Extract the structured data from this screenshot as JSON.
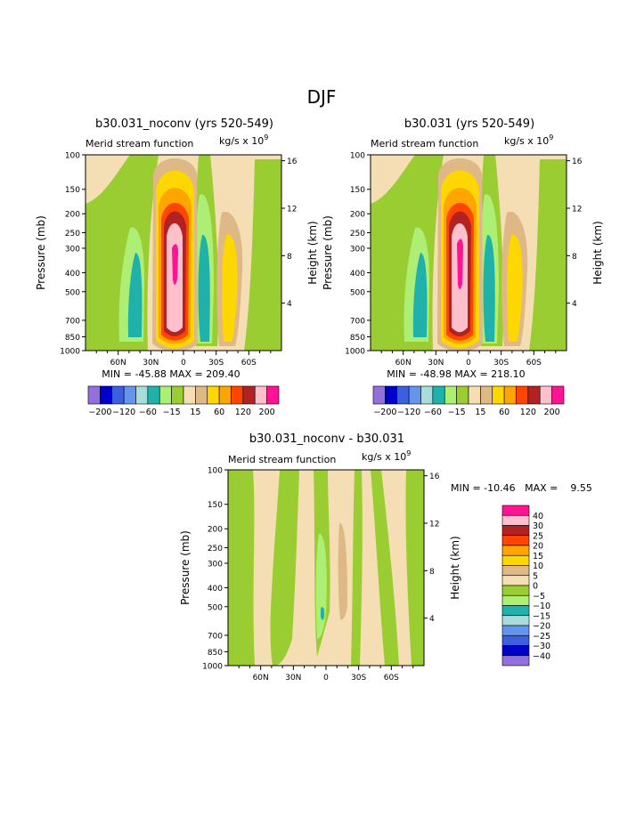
{
  "figure": {
    "season_title": "DJF"
  },
  "chart_data": [
    {
      "type": "heatmap",
      "id": "panel_a",
      "title": "b30.031_noconv (yrs 520-549)",
      "subtitle": "Merid stream function",
      "units": "kg/s x 10",
      "units_exponent": "9",
      "ylabel": "Pressure (mb)",
      "y2label": "Height (km)",
      "y_ticks": [
        "100",
        "150",
        "200",
        "250",
        "300",
        "400",
        "500",
        "700",
        "850",
        "1000"
      ],
      "y_tick_values": [
        100,
        150,
        200,
        250,
        300,
        400,
        500,
        700,
        850,
        1000
      ],
      "y2_ticks": [
        "16",
        "12",
        "8",
        "4"
      ],
      "y2_tick_values": [
        16,
        12,
        8,
        4
      ],
      "x_ticks": [
        "60N",
        "30N",
        "0",
        "30S",
        "60S"
      ],
      "x_tick_values": [
        60,
        30,
        0,
        -30,
        -60
      ],
      "xlim": [
        90,
        -90
      ],
      "stats": "MIN = -45.88   MAX = 209.40",
      "min": -45.88,
      "max": 209.4,
      "contour_levels": [
        -200,
        -160,
        -120,
        -80,
        -60,
        -30,
        -15,
        0,
        15,
        30,
        60,
        80,
        120,
        160,
        200
      ],
      "legend_labels": [
        "-200",
        "-120",
        "-60",
        "-15",
        "15",
        "60",
        "120",
        "200"
      ]
    },
    {
      "type": "heatmap",
      "id": "panel_b",
      "title": "b30.031 (yrs 520-549)",
      "subtitle": "Merid stream function",
      "units": "kg/s x 10",
      "units_exponent": "9",
      "ylabel": "Pressure (mb)",
      "y2label": "Height (km)",
      "y_ticks": [
        "100",
        "150",
        "200",
        "250",
        "300",
        "400",
        "500",
        "700",
        "850",
        "1000"
      ],
      "y_tick_values": [
        100,
        150,
        200,
        250,
        300,
        400,
        500,
        700,
        850,
        1000
      ],
      "y2_ticks": [
        "16",
        "12",
        "8",
        "4"
      ],
      "y2_tick_values": [
        16,
        12,
        8,
        4
      ],
      "x_ticks": [
        "60N",
        "30N",
        "0",
        "30S",
        "60S"
      ],
      "x_tick_values": [
        60,
        30,
        0,
        -30,
        -60
      ],
      "xlim": [
        90,
        -90
      ],
      "stats": "MIN = -48.98   MAX = 218.10",
      "min": -48.98,
      "max": 218.1,
      "contour_levels": [
        -200,
        -160,
        -120,
        -80,
        -60,
        -30,
        -15,
        0,
        15,
        30,
        60,
        80,
        120,
        160,
        200
      ],
      "legend_labels": [
        "-200",
        "-120",
        "-60",
        "-15",
        "15",
        "60",
        "120",
        "200"
      ]
    },
    {
      "type": "heatmap",
      "id": "panel_c",
      "title": "b30.031_noconv - b30.031",
      "subtitle": "Merid stream function",
      "units": "kg/s x 10",
      "units_exponent": "9",
      "ylabel": "Pressure (mb)",
      "y2label": "Height (km)",
      "y_ticks": [
        "100",
        "150",
        "200",
        "250",
        "300",
        "400",
        "500",
        "700",
        "850",
        "1000"
      ],
      "y_tick_values": [
        100,
        150,
        200,
        250,
        300,
        400,
        500,
        700,
        850,
        1000
      ],
      "y2_ticks": [
        "16",
        "12",
        "8",
        "4"
      ],
      "y2_tick_values": [
        16,
        12,
        8,
        4
      ],
      "x_ticks": [
        "60N",
        "30N",
        "0",
        "30S",
        "60S"
      ],
      "x_tick_values": [
        60,
        30,
        0,
        -30,
        -60
      ],
      "xlim": [
        90,
        -90
      ],
      "stats": "MIN = -10.46   MAX =    9.55",
      "min": -10.46,
      "max": 9.55,
      "contour_levels": [
        -40,
        -30,
        -25,
        -20,
        -15,
        -10,
        -5,
        0,
        5,
        10,
        15,
        20,
        25,
        30,
        40
      ],
      "legend_labels": [
        "40",
        "30",
        "25",
        "20",
        "15",
        "10",
        "5",
        "0",
        "-5",
        "-10",
        "-15",
        "-20",
        "-25",
        "-30",
        "-40"
      ]
    }
  ],
  "palette": {
    "p_neg200": "#9370db",
    "p_neg160": "#0000cd",
    "p_neg120": "#3c5fe0",
    "p_neg80": "#6495ed",
    "p_neg60": "#a8dcdc",
    "p_neg30": "#20b2aa",
    "p_neg15": "#adee75",
    "p_neg0": "#9acd32",
    "p_pos0": "#f5deb3",
    "p_pos15": "#deb887",
    "p_pos30": "#ffd700",
    "p_pos60": "#ffa500",
    "p_pos80": "#ff4500",
    "p_pos120": "#b22222",
    "p_pos160": "#ffc0cb",
    "p_pos200": "#ff1493"
  }
}
